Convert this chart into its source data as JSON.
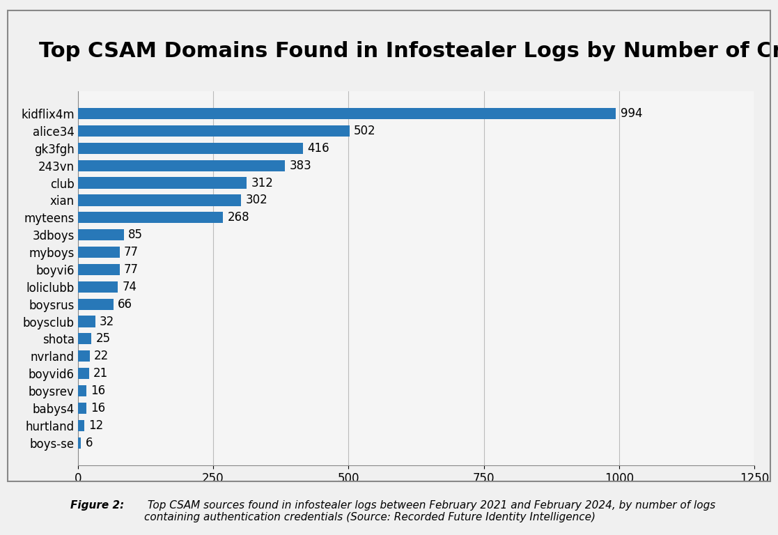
{
  "title": "Top CSAM Domains Found in Infostealer Logs by Number of Credentials",
  "categories": [
    "boys-se",
    "hurtland",
    "babys4",
    "boysrev",
    "boyvid6",
    "nvrland",
    "shota",
    "boysclub",
    "boysrus",
    "loliclubb",
    "boyvi6",
    "myboys",
    "3dboys",
    "myteens",
    "xian",
    "club",
    "243vn",
    "gk3fgh",
    "alice34",
    "kidflix4m"
  ],
  "values": [
    6,
    12,
    16,
    16,
    21,
    22,
    25,
    32,
    66,
    74,
    77,
    77,
    85,
    268,
    302,
    312,
    383,
    416,
    502,
    994
  ],
  "bar_color": "#2878b8",
  "xlim": [
    0,
    1250
  ],
  "xticks": [
    0,
    250,
    500,
    750,
    1000,
    1250
  ],
  "title_fontsize": 22,
  "label_fontsize": 12,
  "value_fontsize": 12,
  "caption_bold": "Figure 2:",
  "caption_italic": " Top CSAM sources found in infostealer logs between February 2021 and February 2024, by number of logs\ncontaining authentication credentials (Source: Recorded Future Identity Intelligence)",
  "background_color": "#f5f5f5",
  "chart_bg": "#f5f5f5",
  "border_color": "#888888"
}
